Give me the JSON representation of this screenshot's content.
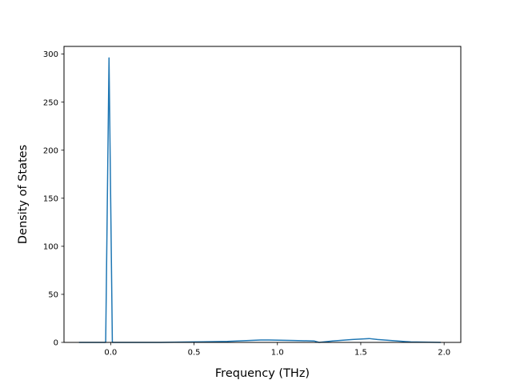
{
  "chart_data": {
    "type": "line",
    "title": "",
    "xlabel": "Frequency (THz)",
    "ylabel": "Density of States",
    "xlim": [
      -0.28,
      2.1
    ],
    "ylim": [
      0,
      308
    ],
    "xticks": [
      {
        "value": 0.0,
        "label": "0.0"
      },
      {
        "value": 0.5,
        "label": "0.5"
      },
      {
        "value": 1.0,
        "label": "1.0"
      },
      {
        "value": 1.5,
        "label": "1.5"
      },
      {
        "value": 2.0,
        "label": "2.0"
      }
    ],
    "yticks": [
      {
        "value": 0,
        "label": "0"
      },
      {
        "value": 50,
        "label": "50"
      },
      {
        "value": 100,
        "label": "100"
      },
      {
        "value": 150,
        "label": "150"
      },
      {
        "value": 200,
        "label": "200"
      },
      {
        "value": 250,
        "label": "250"
      },
      {
        "value": 300,
        "label": "300"
      }
    ],
    "grid": false,
    "line_color": "#1f77b4",
    "series": [
      {
        "x": [
          -0.19,
          -0.03,
          -0.01,
          0.01,
          0.1,
          0.3,
          0.5,
          0.7,
          0.9,
          0.95,
          1.1,
          1.22,
          1.25,
          1.33,
          1.45,
          1.55,
          1.6,
          1.8,
          1.98
        ],
        "y": [
          0,
          0,
          296,
          0,
          0,
          0,
          0.5,
          1,
          2.5,
          2.5,
          2,
          1.5,
          0,
          1.5,
          3,
          4,
          3,
          0.5,
          0
        ]
      }
    ]
  }
}
